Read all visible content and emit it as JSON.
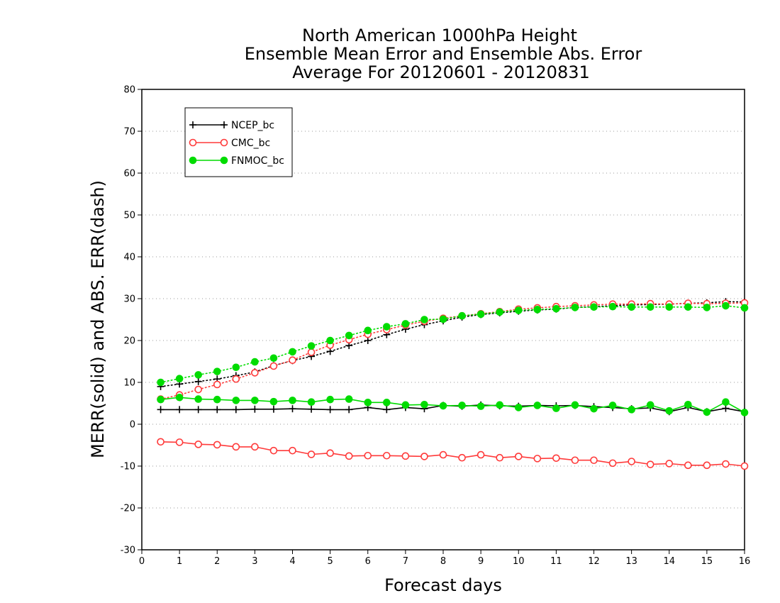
{
  "chart_data": {
    "type": "line",
    "title_lines": [
      "North American 1000hPa Height",
      "Ensemble Mean Error and Ensemble Abs. Error",
      "Average For 20120601 - 20120831"
    ],
    "xlabel": "Forecast days",
    "ylabel": "MERR(solid) and ABS. ERR(dash)",
    "xlim": [
      0,
      16
    ],
    "ylim": [
      -30,
      80
    ],
    "xticks": [
      0,
      1,
      2,
      3,
      4,
      5,
      6,
      7,
      8,
      9,
      10,
      11,
      12,
      13,
      14,
      15,
      16
    ],
    "yticks": [
      -30,
      -20,
      -10,
      0,
      10,
      20,
      30,
      40,
      50,
      60,
      70,
      80
    ],
    "grid": "horizontal dotted",
    "legend_position": "top-left",
    "x": [
      0.5,
      1,
      1.5,
      2,
      2.5,
      3,
      3.5,
      4,
      4.5,
      5,
      5.5,
      6,
      6.5,
      7,
      7.5,
      8,
      8.5,
      9,
      9.5,
      10,
      10.5,
      11,
      11.5,
      12,
      12.5,
      13,
      13.5,
      14,
      14.5,
      15,
      15.5,
      16
    ],
    "series": [
      {
        "name": "NCEP_bc",
        "color": "#000000",
        "marker": "plus",
        "merr": [
          3.5,
          3.5,
          3.5,
          3.5,
          3.5,
          3.6,
          3.6,
          3.7,
          3.6,
          3.5,
          3.5,
          4.0,
          3.5,
          4.0,
          3.7,
          4.5,
          4.3,
          4.6,
          4.4,
          4.3,
          4.5,
          4.4,
          4.5,
          4.2,
          4.0,
          3.7,
          3.9,
          3.0,
          4.0,
          3.0,
          3.8,
          3.0
        ],
        "abs_err": [
          9.0,
          9.6,
          10.2,
          10.8,
          11.6,
          12.5,
          14.0,
          15.2,
          16.2,
          17.4,
          18.8,
          20.0,
          21.4,
          22.7,
          23.8,
          24.7,
          25.6,
          26.2,
          26.6,
          27.0,
          27.3,
          27.5,
          27.9,
          28.1,
          28.3,
          28.5,
          28.6,
          28.7,
          28.9,
          29.0,
          29.3,
          29.2
        ]
      },
      {
        "name": "CMC_bc",
        "color": "#ff3a3a",
        "marker": "open-circle",
        "merr": [
          -4.2,
          -4.3,
          -4.8,
          -4.9,
          -5.4,
          -5.4,
          -6.3,
          -6.3,
          -7.2,
          -6.9,
          -7.6,
          -7.5,
          -7.5,
          -7.6,
          -7.7,
          -7.3,
          -8.0,
          -7.3,
          -8.0,
          -7.7,
          -8.2,
          -8.1,
          -8.6,
          -8.6,
          -9.3,
          -8.9,
          -9.6,
          -9.4,
          -9.8,
          -9.8,
          -9.5,
          -10.0
        ],
        "abs_err": [
          6.0,
          7.0,
          8.3,
          9.5,
          10.8,
          12.3,
          13.9,
          15.3,
          17.2,
          18.9,
          20.2,
          21.5,
          22.6,
          23.7,
          24.6,
          25.3,
          25.9,
          26.4,
          26.9,
          27.5,
          27.8,
          28.1,
          28.3,
          28.5,
          28.7,
          28.7,
          28.8,
          28.7,
          28.9,
          28.8,
          28.9,
          29.0
        ]
      },
      {
        "name": "FNMOC_bc",
        "color": "#00dc00",
        "marker": "filled-circle",
        "merr": [
          5.9,
          6.4,
          6.0,
          5.9,
          5.7,
          5.7,
          5.4,
          5.7,
          5.3,
          5.9,
          6.0,
          5.2,
          5.2,
          4.6,
          4.7,
          4.4,
          4.5,
          4.3,
          4.6,
          4.0,
          4.5,
          3.8,
          4.6,
          3.7,
          4.5,
          3.5,
          4.6,
          3.2,
          4.7,
          2.9,
          5.3,
          2.8
        ],
        "abs_err": [
          10.0,
          10.9,
          11.8,
          12.6,
          13.6,
          14.9,
          15.8,
          17.3,
          18.7,
          20.0,
          21.2,
          22.4,
          23.3,
          24.0,
          25.0,
          25.1,
          25.9,
          26.3,
          26.8,
          27.2,
          27.4,
          27.6,
          27.9,
          28.0,
          28.1,
          28.0,
          28.0,
          28.0,
          28.0,
          27.9,
          28.3,
          27.8
        ]
      }
    ]
  }
}
